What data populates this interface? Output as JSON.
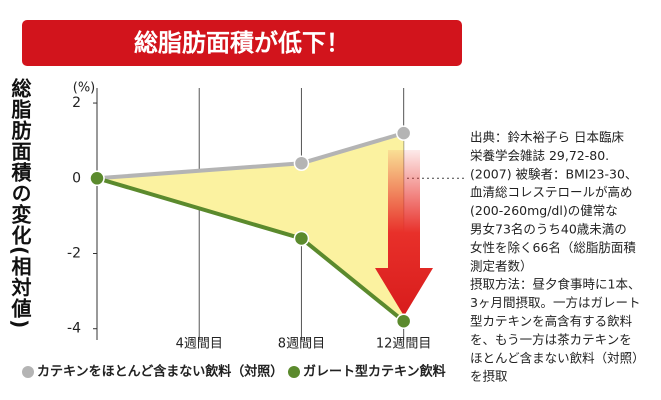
{
  "chart_data": {
    "type": "line",
    "title": "総脂肪面積が低下！",
    "y_label": "総脂肪面積の変化(相対値)",
    "y_unit": "(%)",
    "x": [
      0,
      8,
      12
    ],
    "xlim": [
      0,
      14.4
    ],
    "xticks": [
      {
        "value": 4,
        "label": "4週間目"
      },
      {
        "value": 8,
        "label": "8週間目"
      },
      {
        "value": 12,
        "label": "12週間目"
      }
    ],
    "ylim": [
      -4.3,
      2.4
    ],
    "yticks": [
      2,
      0,
      -2,
      -4
    ],
    "grid": true,
    "fill_between": true,
    "series": [
      {
        "name": "カテキンをほとんど含まない飲料（対照）",
        "color": "#b4b4b4",
        "values": [
          0,
          0.4,
          1.2
        ]
      },
      {
        "name": "ガレート型カテキン飲料",
        "color": "#5b8a2d",
        "values": [
          0,
          -1.6,
          -3.8
        ]
      }
    ],
    "notes": [
      "出典：鈴木裕子ら 日本臨床",
      "栄養学会雑誌 29,72-80.",
      "(2007) 被験者：BMI23-30、",
      "血清総コレステロールが高め",
      "(200-260mg/dl)の健常な",
      "男女73名のうち40歳未満の",
      "女性を除く66名（総脂肪面積",
      "測定者数）",
      "摂取方法：昼夕食事時に1本、",
      "3ヶ月間摂取。一方はガレート",
      "型カテキンを高含有する飲料",
      "を、もう一方は茶カテキンを",
      "ほとんど含まない飲料（対照）",
      "を摂取"
    ]
  }
}
